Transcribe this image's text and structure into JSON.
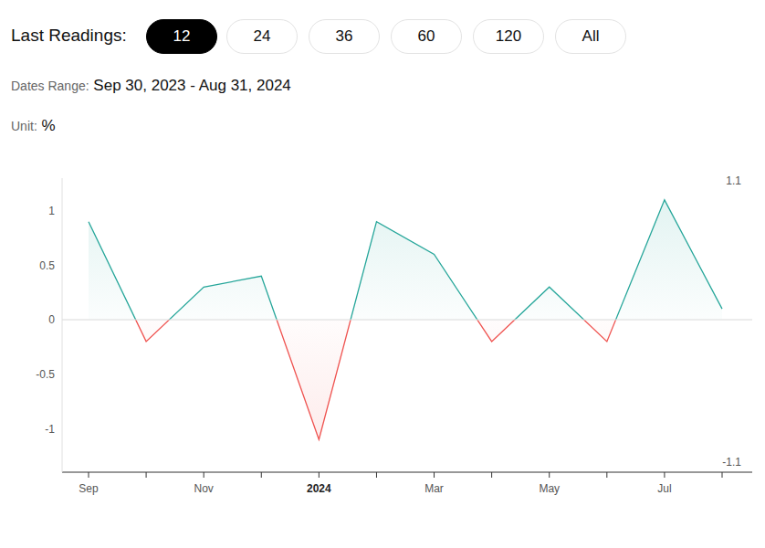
{
  "header": {
    "label": "Last Readings:",
    "options": [
      "12",
      "24",
      "36",
      "60",
      "120",
      "All"
    ],
    "selected": "12",
    "dates_label": "Dates Range:",
    "dates": "Sep 30, 2023 - Aug 31, 2024",
    "unit_label": "Unit:",
    "unit": "%"
  },
  "chart_data": {
    "type": "area",
    "categories": [
      "Sep",
      null,
      "Nov",
      null,
      "2024",
      null,
      "Mar",
      null,
      "May",
      null,
      "Jul",
      null
    ],
    "values": [
      0.9,
      -0.2,
      0.3,
      0.4,
      -1.1,
      0.9,
      0.6,
      -0.2,
      0.3,
      -0.2,
      1.1,
      0.1
    ],
    "color": "#26a69a",
    "ylim": [
      -1.4,
      1.3
    ],
    "yticks": [
      -1,
      -0.5,
      0,
      0.5,
      1
    ],
    "grid": false,
    "annotations": [
      "1.1",
      "-1.1"
    ]
  }
}
